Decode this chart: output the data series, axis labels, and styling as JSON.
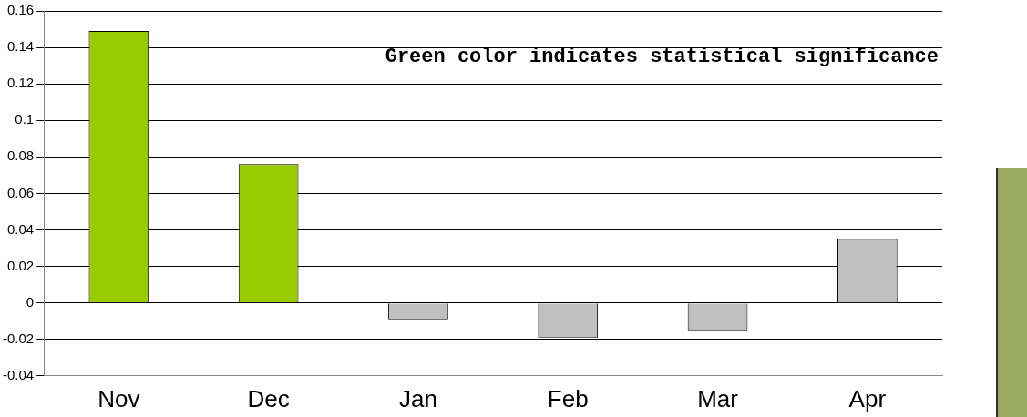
{
  "chart_data": [
    {
      "type": "bar",
      "categories": [
        "Nov",
        "Dec",
        "Jan",
        "Feb",
        "Mar",
        "Apr"
      ],
      "values": [
        0.149,
        0.076,
        -0.009,
        -0.019,
        -0.015,
        0.035
      ],
      "colors": [
        "#99cc00",
        "#99cc00",
        "#c0c0c0",
        "#c0c0c0",
        "#c0c0c0",
        "#c0c0c0"
      ],
      "ylim": [
        -0.04,
        0.16
      ],
      "yticks": [
        -0.04,
        -0.02,
        0,
        0.02,
        0.04,
        0.06,
        0.08,
        0.1,
        0.12,
        0.14,
        0.16
      ],
      "grid": "y",
      "legend": false,
      "annotations": [
        "Green color indicates statistical significance"
      ]
    }
  ]
}
